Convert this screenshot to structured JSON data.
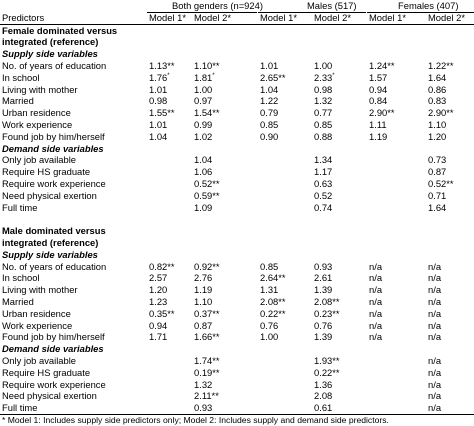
{
  "header": {
    "groups": [
      "Both genders (n=924)",
      "Males (517)",
      "Females (407)"
    ],
    "predictors_label": "Predictors",
    "models": [
      "Model 1*",
      "Model 2*",
      "Model 1*",
      "Model 2*",
      "Model 1*",
      "Model 2*"
    ]
  },
  "sections": [
    {
      "title_lines": [
        "Female dominated versus",
        "integrated (reference)"
      ],
      "subsections": [
        {
          "title": "Supply side variables",
          "rows": [
            {
              "label": "No. of years of education",
              "v": [
                "1.13**",
                "1.10**",
                "1.01",
                "1.00",
                "1.24**",
                "1.22**"
              ]
            },
            {
              "label": "In school",
              "v": [
                "1.76*",
                "1.81*",
                "2.65**",
                "2.33*",
                "1.57",
                "1.64"
              ]
            },
            {
              "label": "Living with mother",
              "v": [
                "1.01",
                "1.00",
                "1.04",
                "0.98",
                "0.94",
                "0.86"
              ]
            },
            {
              "label": "Married",
              "v": [
                "0.98",
                "0.97",
                "1.22",
                "1.32",
                "0.84",
                "0.83"
              ]
            },
            {
              "label": "Urban residence",
              "v": [
                "1.55**",
                "1.54**",
                "0.79",
                "0.77",
                "2.90**",
                "2.90**"
              ]
            },
            {
              "label": "Work experience",
              "v": [
                "1.01",
                "0.99",
                "0.85",
                "0.85",
                "1.11",
                "1.10"
              ]
            },
            {
              "label": "Found job by him/herself",
              "v": [
                "1.04",
                "1.02",
                "0.90",
                "0.88",
                "1.19",
                "1.20"
              ]
            }
          ]
        },
        {
          "title": "Demand side variables",
          "rows": [
            {
              "label": "Only job available",
              "v": [
                "",
                "1.04",
                "",
                "1.34",
                "",
                "0.73"
              ]
            },
            {
              "label": "Require HS graduate",
              "v": [
                "",
                "1.06",
                "",
                "1.17",
                "",
                "0.87"
              ]
            },
            {
              "label": "Require work experience",
              "v": [
                "",
                "0.52**",
                "",
                "0.63",
                "",
                "0.52**"
              ]
            },
            {
              "label": "Need physical exertion",
              "v": [
                "",
                "0.59**",
                "",
                "0.52",
                "",
                "0.71"
              ]
            },
            {
              "label": "Full time",
              "v": [
                "",
                "1.09",
                "",
                "0.74",
                "",
                "1.64"
              ]
            }
          ]
        }
      ]
    },
    {
      "title_lines": [
        "Male dominated versus",
        "integrated (reference)"
      ],
      "subsections": [
        {
          "title": "Supply side variables",
          "rows": [
            {
              "label": "No. of years of education",
              "v": [
                "0.82**",
                "0.92**",
                "0.85",
                "0.93",
                "n/a",
                "n/a"
              ]
            },
            {
              "label": "In school",
              "v": [
                "2.57",
                "2.76",
                "2.64**",
                "2.61",
                "n/a",
                "n/a"
              ]
            },
            {
              "label": "Living with mother",
              "v": [
                "1.20",
                "1.19",
                "1.31",
                "1.39",
                "n/a",
                "n/a"
              ]
            },
            {
              "label": "Married",
              "v": [
                "1.23",
                "1.10",
                "2.08**",
                "2.08**",
                "n/a",
                "n/a"
              ]
            },
            {
              "label": "Urban residence",
              "v": [
                "0.35**",
                "0.37**",
                "0.22**",
                "0.23**",
                "n/a",
                "n/a"
              ]
            },
            {
              "label": "Work experience",
              "v": [
                "0.94",
                "0.87",
                "0.76",
                "0.76",
                "n/a",
                "n/a"
              ]
            },
            {
              "label": "Found job by him/herself",
              "v": [
                "1.71",
                "1.66**",
                "1.00",
                "1.39",
                "n/a",
                "n/a"
              ]
            }
          ]
        },
        {
          "title": "Demand side variables",
          "rows": [
            {
              "label": "Only job available",
              "v": [
                "",
                "1.74**",
                "",
                "1.93**",
                "",
                "n/a"
              ]
            },
            {
              "label": "Require HS graduate",
              "v": [
                "",
                "0.19**",
                "",
                "0.22**",
                "",
                "n/a"
              ]
            },
            {
              "label": "Require work experience",
              "v": [
                "",
                "1.32",
                "",
                "1.36",
                "",
                "n/a"
              ]
            },
            {
              "label": "Need physical exertion",
              "v": [
                "",
                "2.11**",
                "",
                "2.08",
                "",
                "n/a"
              ]
            },
            {
              "label": "Full time",
              "v": [
                "",
                "0.93",
                "",
                "0.61",
                "",
                "n/a"
              ]
            }
          ]
        }
      ]
    }
  ],
  "footnote": "* Model 1: Includes supply side predictors only; Model 2: Includes supply and demand side predictors."
}
